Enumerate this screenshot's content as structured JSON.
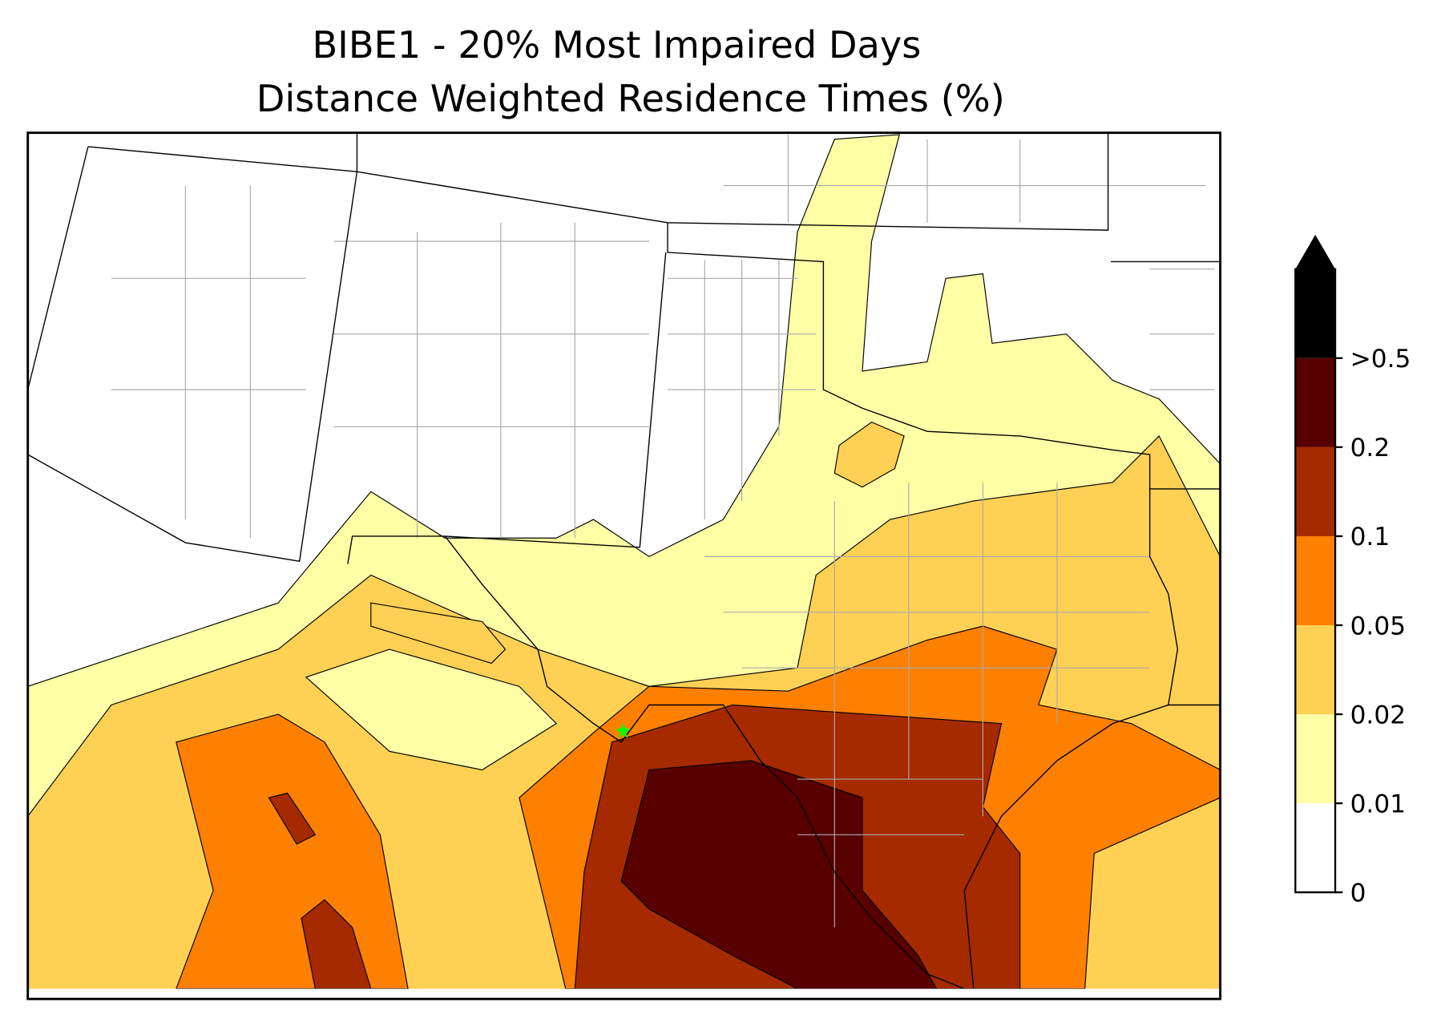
{
  "title": [
    "BIBE1 - 20% Most Impaired Days",
    "Distance Weighted Residence Times (%)"
  ],
  "colorbar": {
    "ticks": [
      "0",
      "0.01",
      "0.02",
      "0.05",
      "0.1",
      "0.2",
      ">0.5"
    ],
    "colors": [
      "#ffffff",
      "#ffffa6",
      "#fed155",
      "#fe8000",
      "#a52a00",
      "#580000",
      "#000000"
    ]
  }
}
